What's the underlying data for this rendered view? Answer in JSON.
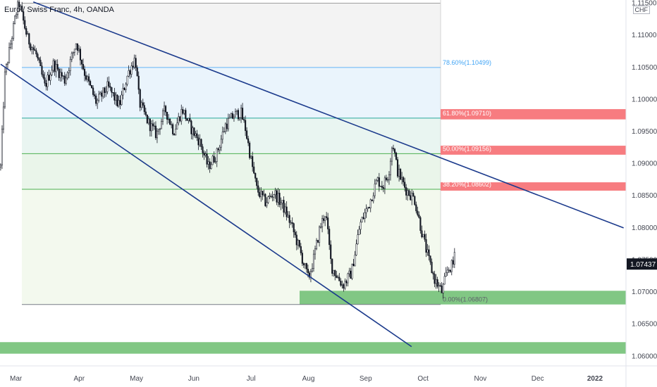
{
  "header": {
    "title": "Euro / Swiss Franc, 4h, OANDA",
    "currency": "CHF"
  },
  "colors": {
    "trendline": "#1b3a8c",
    "candle": "#131722",
    "support_zone": "#81c784",
    "resistance_zone": "#f77c80",
    "fib_786": "#64b5f6",
    "fib_618": "#26a69a",
    "fib_500": "#4caf50",
    "fib_0": "#787b86"
  },
  "chart_data": {
    "type": "candlestick",
    "instrument": "Euro / Swiss Franc",
    "timeframe": "4h",
    "source": "OANDA",
    "ylim": [
      1.0585,
      1.1155
    ],
    "y_ticks": [
      "1.11500",
      "1.11000",
      "1.10500",
      "1.10000",
      "1.09500",
      "1.09000",
      "1.08500",
      "1.08000",
      "1.07500",
      "1.07000",
      "1.06500",
      "1.06000"
    ],
    "x_labels": [
      {
        "label": "Mar",
        "t": 0
      },
      {
        "label": "Apr",
        "t": 1
      },
      {
        "label": "May",
        "t": 2
      },
      {
        "label": "Jun",
        "t": 3
      },
      {
        "label": "Jul",
        "t": 4
      },
      {
        "label": "Aug",
        "t": 5
      },
      {
        "label": "Sep",
        "t": 6
      },
      {
        "label": "Oct",
        "t": 7
      },
      {
        "label": "Nov",
        "t": 8
      },
      {
        "label": "Dec",
        "t": 9
      },
      {
        "label": "2022",
        "t": 10
      }
    ],
    "last_price": "1.07437",
    "price_path": [
      [
        -0.37,
        1.0895
      ],
      [
        -0.3,
        1.1035
      ],
      [
        -0.2,
        1.1085
      ],
      [
        -0.1,
        1.1135
      ],
      [
        -0.05,
        1.115
      ],
      [
        0.1,
        1.1095
      ],
      [
        0.25,
        1.107
      ],
      [
        0.4,
        1.102
      ],
      [
        0.55,
        1.1055
      ],
      [
        0.75,
        1.103
      ],
      [
        0.95,
        1.109
      ],
      [
        1.1,
        1.104
      ],
      [
        1.3,
        1.0995
      ],
      [
        1.5,
        1.102
      ],
      [
        1.7,
        1.099
      ],
      [
        1.85,
        1.104
      ],
      [
        1.98,
        1.1065
      ],
      [
        2.05,
        1.0995
      ],
      [
        2.2,
        1.0965
      ],
      [
        2.35,
        1.0945
      ],
      [
        2.5,
        1.0985
      ],
      [
        2.65,
        1.095
      ],
      [
        2.8,
        1.0985
      ],
      [
        2.95,
        1.0955
      ],
      [
        3.1,
        1.0935
      ],
      [
        3.25,
        1.0895
      ],
      [
        3.4,
        1.0915
      ],
      [
        3.55,
        1.096
      ],
      [
        3.7,
        1.0975
      ],
      [
        3.82,
        1.098
      ],
      [
        3.9,
        1.0955
      ],
      [
        4.0,
        1.0905
      ],
      [
        4.1,
        1.086
      ],
      [
        4.25,
        1.084
      ],
      [
        4.4,
        1.0855
      ],
      [
        4.55,
        1.0835
      ],
      [
        4.7,
        1.0805
      ],
      [
        4.85,
        1.0765
      ],
      [
        5.0,
        1.072
      ],
      [
        5.1,
        1.0755
      ],
      [
        5.2,
        1.08
      ],
      [
        5.3,
        1.0825
      ],
      [
        5.4,
        1.074
      ],
      [
        5.5,
        1.0725
      ],
      [
        5.6,
        1.071
      ],
      [
        5.75,
        1.073
      ],
      [
        5.9,
        1.0805
      ],
      [
        6.05,
        1.0835
      ],
      [
        6.2,
        1.0875
      ],
      [
        6.3,
        1.0865
      ],
      [
        6.4,
        1.0885
      ],
      [
        6.47,
        1.0935
      ],
      [
        6.55,
        1.089
      ],
      [
        6.7,
        1.086
      ],
      [
        6.85,
        1.0845
      ],
      [
        7.0,
        1.0785
      ],
      [
        7.1,
        1.075
      ],
      [
        7.2,
        1.072
      ],
      [
        7.33,
        1.07
      ],
      [
        7.43,
        1.0735
      ],
      [
        7.55,
        1.0745
      ]
    ],
    "fib_levels": [
      {
        "label": "78.60%(1.10499)",
        "value": 1.10499,
        "color": "#64b5f6"
      },
      {
        "label": "61.80%(1.09710)",
        "value": 1.0971,
        "color": "#26a69a"
      },
      {
        "label": "50.00%(1.09156)",
        "value": 1.09156,
        "color": "#4caf50"
      },
      {
        "label": "38.20%(1.08602)",
        "value": 1.08602,
        "color": "#4caf50"
      },
      {
        "label": "0.00%(1.06807)",
        "value": 1.06807,
        "color": "#787b86"
      }
    ],
    "fib_top": 1.115,
    "resistance_zones": [
      [
        1.0969,
        1.0985
      ],
      [
        1.0914,
        1.0928
      ],
      [
        1.0858,
        1.0871
      ]
    ],
    "support_zones": [
      [
        1.06807,
        1.0702
      ],
      [
        1.0604,
        1.0622
      ]
    ],
    "trendlines": [
      {
        "from": [
          -0.37,
          1.1055
        ],
        "to": [
          6.8,
          1.0615
        ]
      },
      {
        "from": [
          0.2,
          1.1152
        ],
        "to": [
          10.5,
          1.08
        ]
      }
    ]
  }
}
